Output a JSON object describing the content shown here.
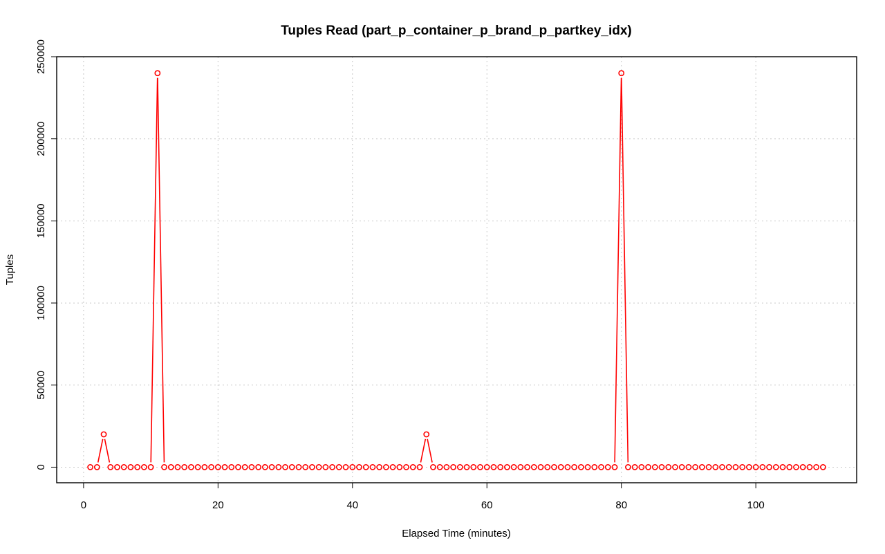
{
  "chart_data": {
    "type": "line",
    "title": "Tuples Read (part_p_container_p_brand_p_partkey_idx)",
    "xlabel": "Elapsed Time (minutes)",
    "ylabel": "Tuples",
    "xlim": [
      -4,
      115
    ],
    "ylim": [
      -9500,
      250000
    ],
    "x_ticks": [
      0,
      20,
      40,
      60,
      80,
      100
    ],
    "y_ticks": [
      0,
      50000,
      100000,
      150000,
      200000,
      250000
    ],
    "x_tick_labels": [
      "0",
      "20",
      "40",
      "60",
      "80",
      "100"
    ],
    "y_tick_labels": [
      "0",
      "50000",
      "100000",
      "150000",
      "200000",
      "250000"
    ],
    "grid": true,
    "series_color": "#ff0000",
    "x_start": 1,
    "x_end": 110,
    "baseline_value": 0,
    "series": [
      {
        "points": [
          [
            1,
            0
          ],
          [
            2,
            0
          ],
          [
            3,
            20000
          ],
          [
            4,
            0
          ],
          [
            5,
            0
          ],
          [
            6,
            0
          ],
          [
            7,
            0
          ],
          [
            8,
            0
          ],
          [
            9,
            0
          ],
          [
            10,
            0
          ],
          [
            11,
            240000
          ],
          [
            12,
            0
          ],
          [
            13,
            0
          ],
          [
            14,
            0
          ],
          [
            15,
            0
          ],
          [
            16,
            0
          ],
          [
            17,
            0
          ],
          [
            18,
            0
          ],
          [
            19,
            0
          ],
          [
            20,
            0
          ],
          [
            21,
            0
          ],
          [
            22,
            0
          ],
          [
            23,
            0
          ],
          [
            24,
            0
          ],
          [
            25,
            0
          ],
          [
            26,
            0
          ],
          [
            27,
            0
          ],
          [
            28,
            0
          ],
          [
            29,
            0
          ],
          [
            30,
            0
          ],
          [
            31,
            0
          ],
          [
            32,
            0
          ],
          [
            33,
            0
          ],
          [
            34,
            0
          ],
          [
            35,
            0
          ],
          [
            36,
            0
          ],
          [
            37,
            0
          ],
          [
            38,
            0
          ],
          [
            39,
            0
          ],
          [
            40,
            0
          ],
          [
            41,
            0
          ],
          [
            42,
            0
          ],
          [
            43,
            0
          ],
          [
            44,
            0
          ],
          [
            45,
            0
          ],
          [
            46,
            0
          ],
          [
            47,
            0
          ],
          [
            48,
            0
          ],
          [
            49,
            0
          ],
          [
            50,
            0
          ],
          [
            51,
            20000
          ],
          [
            52,
            0
          ],
          [
            53,
            0
          ],
          [
            54,
            0
          ],
          [
            55,
            0
          ],
          [
            56,
            0
          ],
          [
            57,
            0
          ],
          [
            58,
            0
          ],
          [
            59,
            0
          ],
          [
            60,
            0
          ],
          [
            61,
            0
          ],
          [
            62,
            0
          ],
          [
            63,
            0
          ],
          [
            64,
            0
          ],
          [
            65,
            0
          ],
          [
            66,
            0
          ],
          [
            67,
            0
          ],
          [
            68,
            0
          ],
          [
            69,
            0
          ],
          [
            70,
            0
          ],
          [
            71,
            0
          ],
          [
            72,
            0
          ],
          [
            73,
            0
          ],
          [
            74,
            0
          ],
          [
            75,
            0
          ],
          [
            76,
            0
          ],
          [
            77,
            0
          ],
          [
            78,
            0
          ],
          [
            79,
            0
          ],
          [
            80,
            240000
          ],
          [
            81,
            0
          ],
          [
            82,
            0
          ],
          [
            83,
            0
          ],
          [
            84,
            0
          ],
          [
            85,
            0
          ],
          [
            86,
            0
          ],
          [
            87,
            0
          ],
          [
            88,
            0
          ],
          [
            89,
            0
          ],
          [
            90,
            0
          ],
          [
            91,
            0
          ],
          [
            92,
            0
          ],
          [
            93,
            0
          ],
          [
            94,
            0
          ],
          [
            95,
            0
          ],
          [
            96,
            0
          ],
          [
            97,
            0
          ],
          [
            98,
            0
          ],
          [
            99,
            0
          ],
          [
            100,
            0
          ],
          [
            101,
            0
          ],
          [
            102,
            0
          ],
          [
            103,
            0
          ],
          [
            104,
            0
          ],
          [
            105,
            0
          ],
          [
            106,
            0
          ],
          [
            107,
            0
          ],
          [
            108,
            0
          ],
          [
            109,
            0
          ],
          [
            110,
            0
          ]
        ]
      }
    ]
  }
}
